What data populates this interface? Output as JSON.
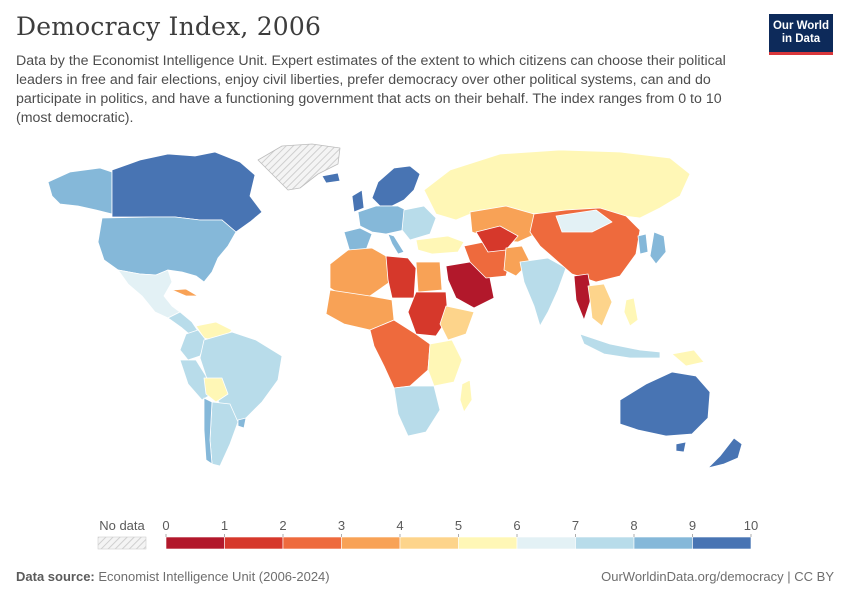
{
  "header": {
    "title": "Democracy Index, 2006",
    "subtitle": "Data by the Economist Intelligence Unit. Expert estimates of the extent to which citizens can choose their political leaders in free and fair elections, enjoy civil liberties, prefer democracy over other political systems, can and do participate in politics, and have a functioning government that acts on their behalf. The index ranges from 0 to 10 (most democratic).",
    "logo_line1": "Our World",
    "logo_line2": "in Data"
  },
  "legend": {
    "no_data_label": "No data",
    "ticks": [
      "0",
      "1",
      "2",
      "3",
      "4",
      "5",
      "6",
      "7",
      "8",
      "9",
      "10"
    ],
    "colors": [
      "#b2182b",
      "#d6382b",
      "#ee6a3d",
      "#f8a256",
      "#fdd48b",
      "#fff7b6",
      "#e3f1f5",
      "#b8dcea",
      "#85b8d9",
      "#4874b3"
    ],
    "no_data_color": "#d9d9d9"
  },
  "footer": {
    "source_label": "Data source:",
    "source_text": "Economist Intelligence Unit (2006-2024)",
    "url": "OurWorldinData.org/democracy | CC BY"
  }
}
